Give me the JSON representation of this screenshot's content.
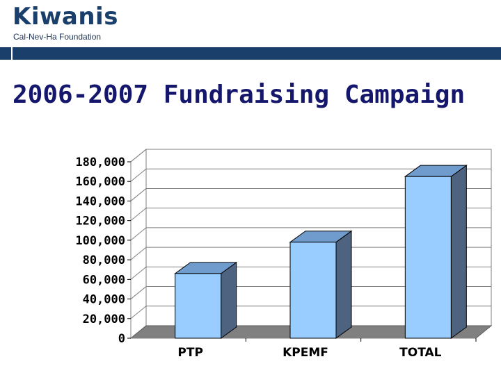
{
  "header": {
    "brand": "Kiwanis",
    "subtitle": "Cal-Nev-Ha Foundation"
  },
  "slide": {
    "title": "2006-2007 Fundraising Campaign"
  },
  "colors": {
    "accent": "#1b3f6b",
    "title": "#14176b",
    "bar_front": "#99ccff",
    "bar_top": "#6f9ccc",
    "bar_side": "#4d6380",
    "floor": "#808080"
  },
  "chart_data": {
    "type": "bar",
    "title": "",
    "xlabel": "",
    "ylabel": "",
    "categories": [
      "PTP",
      "KPEMF",
      "TOTAL"
    ],
    "values": [
      66000,
      98000,
      165000
    ],
    "ylim": [
      0,
      180000
    ],
    "yticks": [
      0,
      20000,
      40000,
      60000,
      80000,
      100000,
      120000,
      140000,
      160000,
      180000
    ],
    "ytick_labels": [
      "0",
      "20,000",
      "40,000",
      "60,000",
      "80,000",
      "100,000",
      "120,000",
      "140,000",
      "160,000",
      "180,000"
    ],
    "style": "3d",
    "grid": true,
    "legend": "none"
  }
}
